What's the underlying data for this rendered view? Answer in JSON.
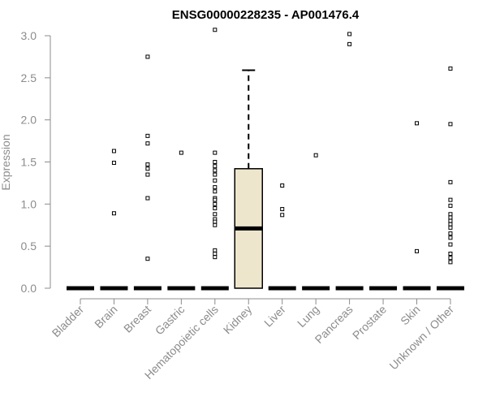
{
  "chart_data": {
    "type": "box",
    "title": "ENSG00000228235 - AP001476.4",
    "xlabel": "",
    "ylabel": "Expression",
    "ylim": [
      0,
      3.0
    ],
    "yticks": [
      "0.0",
      "0.5",
      "1.0",
      "1.5",
      "2.0",
      "2.5",
      "3.0"
    ],
    "box_fill": "#ede6cc",
    "categories": [
      "Bladder",
      "Brain",
      "Breast",
      "Gastric",
      "Hematopoietic cells",
      "Kidney",
      "Liver",
      "Lung",
      "Pancreas",
      "Prostate",
      "Skin",
      "Unknown / Other"
    ],
    "boxes": [
      {
        "q1": 0,
        "median": 0,
        "q3": 0,
        "whisker_low": 0,
        "whisker_high": 0,
        "outliers": []
      },
      {
        "q1": 0,
        "median": 0,
        "q3": 0,
        "whisker_low": 0,
        "whisker_high": 0,
        "outliers": [
          1.63,
          1.49,
          0.89
        ]
      },
      {
        "q1": 0,
        "median": 0,
        "q3": 0,
        "whisker_low": 0,
        "whisker_high": 0,
        "outliers": [
          2.75,
          1.81,
          1.72,
          1.47,
          1.42,
          1.35,
          1.07,
          0.35
        ]
      },
      {
        "q1": 0,
        "median": 0,
        "q3": 0,
        "whisker_low": 0,
        "whisker_high": 0,
        "outliers": [
          1.61
        ]
      },
      {
        "q1": 0,
        "median": 0,
        "q3": 0,
        "whisker_low": 0,
        "whisker_high": 0,
        "outliers": [
          3.07,
          1.61,
          1.5,
          1.45,
          1.4,
          1.35,
          1.28,
          1.2,
          1.15,
          1.07,
          1.05,
          1.0,
          0.95,
          0.88,
          0.82,
          0.79,
          0.75,
          0.45,
          0.41,
          0.37
        ]
      },
      {
        "q1": 0,
        "median": 0.71,
        "q3": 1.42,
        "whisker_low": 0,
        "whisker_high": 2.59,
        "outliers": []
      },
      {
        "q1": 0,
        "median": 0,
        "q3": 0,
        "whisker_low": 0,
        "whisker_high": 0,
        "outliers": [
          1.22,
          0.94,
          0.87
        ]
      },
      {
        "q1": 0,
        "median": 0,
        "q3": 0,
        "whisker_low": 0,
        "whisker_high": 0,
        "outliers": [
          1.58
        ]
      },
      {
        "q1": 0,
        "median": 0,
        "q3": 0,
        "whisker_low": 0,
        "whisker_high": 0,
        "outliers": [
          3.02,
          2.9
        ]
      },
      {
        "q1": 0,
        "median": 0,
        "q3": 0,
        "whisker_low": 0,
        "whisker_high": 0,
        "outliers": []
      },
      {
        "q1": 0,
        "median": 0,
        "q3": 0,
        "whisker_low": 0,
        "whisker_high": 0,
        "outliers": [
          1.96,
          0.44
        ]
      },
      {
        "q1": 0,
        "median": 0,
        "q3": 0,
        "whisker_low": 0,
        "whisker_high": 0,
        "outliers": [
          2.61,
          1.95,
          1.26,
          1.05,
          0.98,
          0.88,
          0.84,
          0.8,
          0.76,
          0.72,
          0.65,
          0.6,
          0.52,
          0.41,
          0.36,
          0.31
        ]
      }
    ]
  }
}
